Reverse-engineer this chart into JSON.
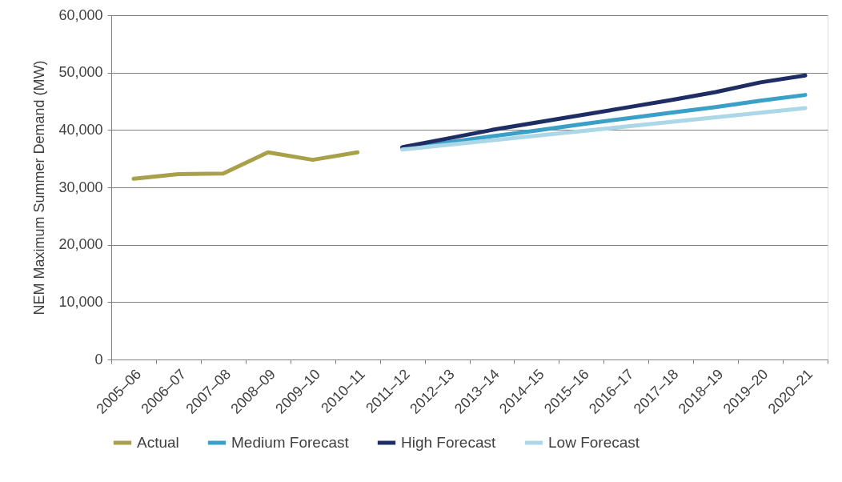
{
  "chart_data": {
    "type": "line",
    "ylabel": "NEM Maximum Summer Demand (MW)",
    "categories": [
      "2005–06",
      "2006–07",
      "2007–08",
      "2008–09",
      "2009–10",
      "2010–11",
      "2011–12",
      "2012–13",
      "2013–14",
      "2014–15",
      "2015–16",
      "2016–17",
      "2017–18",
      "2018–19",
      "2019–20",
      "2020–21"
    ],
    "series": [
      {
        "name": "Actual",
        "color": "#a9a04a",
        "values": [
          31500,
          32300,
          32400,
          36100,
          34800,
          36100,
          null,
          null,
          null,
          null,
          null,
          null,
          null,
          null,
          null,
          null
        ]
      },
      {
        "name": "Medium Forecast",
        "color": "#3aa0c8",
        "values": [
          null,
          null,
          null,
          null,
          null,
          null,
          36800,
          37800,
          38900,
          39900,
          41000,
          42000,
          43000,
          44000,
          45100,
          46100
        ]
      },
      {
        "name": "High Forecast",
        "color": "#1f2d65",
        "values": [
          null,
          null,
          null,
          null,
          null,
          null,
          37000,
          38500,
          40000,
          41300,
          42600,
          43900,
          45200,
          46600,
          48300,
          49500
        ]
      },
      {
        "name": "Low Forecast",
        "color": "#acd7e6",
        "values": [
          null,
          null,
          null,
          null,
          null,
          null,
          36600,
          37400,
          38200,
          39000,
          39800,
          40600,
          41400,
          42200,
          43000,
          43800
        ]
      }
    ],
    "ylim": [
      0,
      60000
    ],
    "yticks": [
      0,
      {
        "value": 10000,
        "label": "10,000"
      },
      {
        "value": 20000,
        "label": "20,000"
      },
      {
        "value": 30000,
        "label": "30,000"
      },
      {
        "value": 40000,
        "label": "40,000"
      },
      {
        "value": 50000,
        "label": "50,000"
      },
      {
        "value": 60000,
        "label": "60,000"
      }
    ],
    "grid": "y",
    "legend": "bottom",
    "marker": "none",
    "line_style": "solid"
  }
}
